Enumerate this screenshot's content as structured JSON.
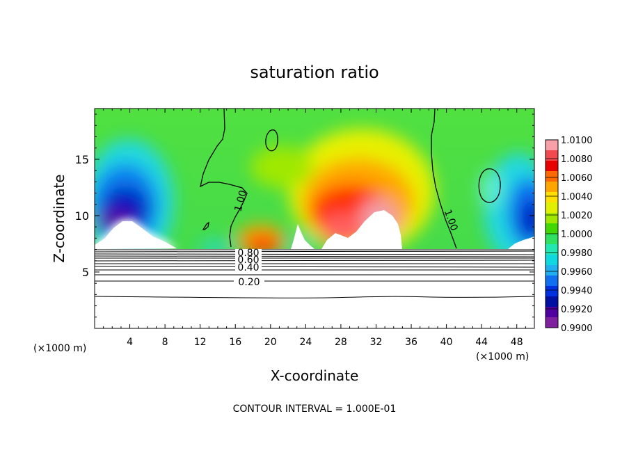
{
  "chart_data": {
    "type": "heatmap",
    "title": "saturation ratio",
    "xlabel": "X-coordinate",
    "ylabel": "Z-coordinate",
    "x_units_left": "(×1000 m)",
    "x_units_right": "(×1000 m)",
    "footer": "CONTOUR INTERVAL = 1.000E-01",
    "xlim": [
      0,
      50
    ],
    "ylim": [
      0,
      19.5
    ],
    "x_ticks": [
      4,
      8,
      12,
      16,
      20,
      24,
      28,
      32,
      36,
      40,
      44,
      48
    ],
    "y_ticks": [
      5,
      10,
      15
    ],
    "colorbar": {
      "min": 0.99,
      "max": 1.01,
      "labels": [
        "1.0100",
        "1.0080",
        "1.0060",
        "1.0040",
        "1.0020",
        "1.0000",
        "0.9980",
        "0.9960",
        "0.9940",
        "0.9920",
        "0.9900"
      ],
      "colors": [
        "#f7a0a8",
        "#f04a50",
        "#e80000",
        "#ff6a00",
        "#ffa500",
        "#ffe000",
        "#e0f000",
        "#a0e800",
        "#40d800",
        "#30e060",
        "#20e8b0",
        "#10d8e0",
        "#20b0f0",
        "#1070f0",
        "#0030e0",
        "#0010a0",
        "#5000a0",
        "#8020a0"
      ]
    },
    "contour_labels_sat": [
      "1.00",
      "1.00"
    ],
    "contour_labels_lower": [
      "0.80",
      "0.60",
      "0.40",
      "0.20"
    ],
    "grid": false
  }
}
